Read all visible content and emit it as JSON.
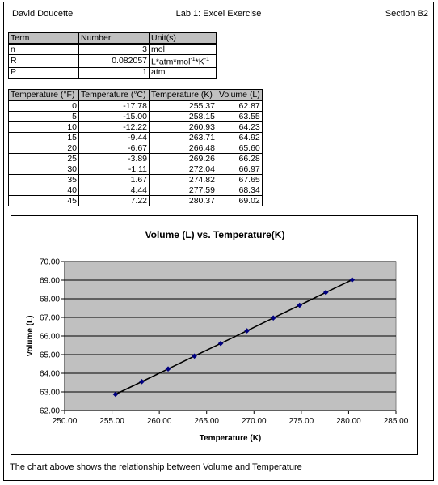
{
  "header": {
    "author": "David Doucette",
    "title": "Lab 1: Excel Exercise",
    "section": "Section B2"
  },
  "params_table": {
    "columns": [
      "Term",
      "Number",
      "Unit(s)"
    ],
    "rows": [
      {
        "term": "n",
        "number": "3",
        "unit": "mol"
      },
      {
        "term": "R",
        "number": "0.082057",
        "unit_base": "L*atm*mol",
        "unit_sup1": "-1",
        "unit_mid": "*K",
        "unit_sup2": "-1"
      },
      {
        "term": "P",
        "number": "1",
        "unit": "atm"
      }
    ]
  },
  "temps_table": {
    "columns": [
      "Temperature (°F)",
      "Temperature (°C)",
      "Temperature (K)",
      "Volume (L)"
    ],
    "rows": [
      [
        "0",
        "-17.78",
        "255.37",
        "62.87"
      ],
      [
        "5",
        "-15.00",
        "258.15",
        "63.55"
      ],
      [
        "10",
        "-12.22",
        "260.93",
        "64.23"
      ],
      [
        "15",
        "-9.44",
        "263.71",
        "64.92"
      ],
      [
        "20",
        "-6.67",
        "266.48",
        "65.60"
      ],
      [
        "25",
        "-3.89",
        "269.26",
        "66.28"
      ],
      [
        "30",
        "-1.11",
        "272.04",
        "66.97"
      ],
      [
        "35",
        "1.67",
        "274.82",
        "67.65"
      ],
      [
        "40",
        "4.44",
        "277.59",
        "68.34"
      ],
      [
        "45",
        "7.22",
        "280.37",
        "69.02"
      ]
    ]
  },
  "chart_data": {
    "type": "line",
    "title": "Volume (L) vs. Temperature(K)",
    "xlabel": "Temperature (K)",
    "ylabel": "Volume (L)",
    "xlim": [
      250,
      285
    ],
    "ylim": [
      62,
      70
    ],
    "xticks": [
      "250.00",
      "255.00",
      "260.00",
      "265.00",
      "270.00",
      "275.00",
      "280.00",
      "285.00"
    ],
    "yticks": [
      "62.00",
      "63.00",
      "64.00",
      "65.00",
      "66.00",
      "67.00",
      "68.00",
      "69.00",
      "70.00"
    ],
    "grid": true,
    "plot_background": "#c0c0c0",
    "line_color": "#000000",
    "marker_color": "#000080",
    "series": [
      {
        "x": [
          255.37,
          258.15,
          260.93,
          263.71,
          266.48,
          269.26,
          272.04,
          274.82,
          277.59,
          280.37
        ],
        "y": [
          62.87,
          63.55,
          64.23,
          64.92,
          65.6,
          66.28,
          66.97,
          67.65,
          68.34,
          69.02
        ]
      }
    ]
  },
  "footer": {
    "caption": "The chart above shows the relationship between Volume and Temperature"
  }
}
